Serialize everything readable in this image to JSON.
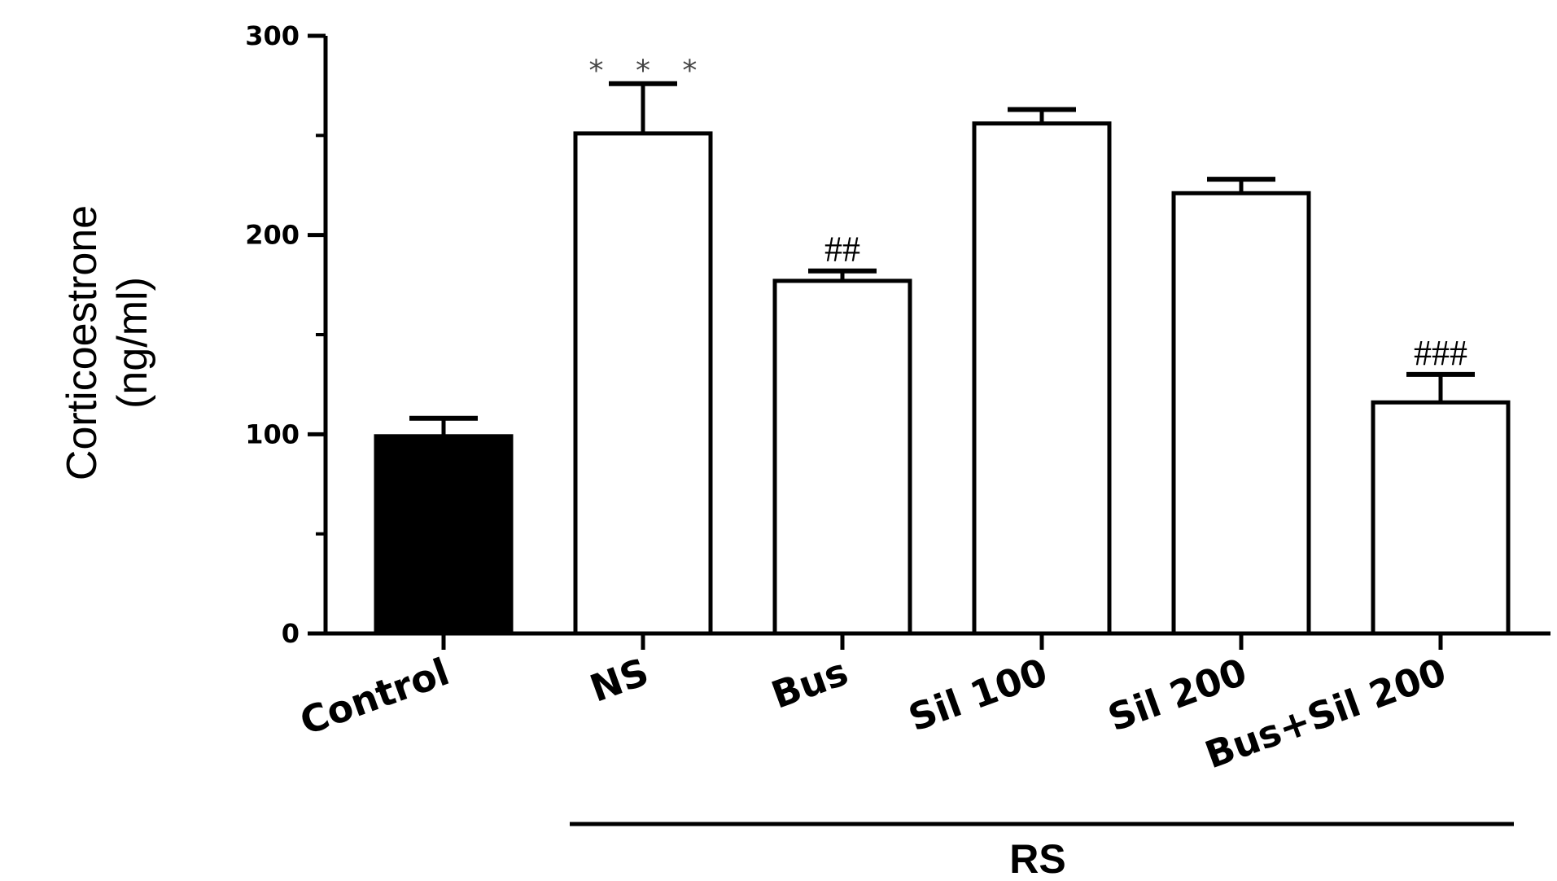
{
  "chart_data": {
    "type": "bar",
    "title": "",
    "xlabel": "",
    "ylabel": [
      "Corticoestrone",
      "(ng/ml)"
    ],
    "ylim": [
      0,
      300
    ],
    "yticks": [
      "0",
      "100",
      "200",
      "300"
    ],
    "categories": [
      "Control",
      "NS",
      "Bus",
      "Sil 100",
      "Sil 200",
      "Bus+Sil 200"
    ],
    "values": [
      99,
      251,
      177,
      256,
      221,
      116
    ],
    "errors": [
      9,
      25,
      5,
      7,
      7,
      14
    ],
    "bar_fills": [
      "#000000",
      "#ffffff",
      "#ffffff",
      "#ffffff",
      "#ffffff",
      "#ffffff"
    ],
    "annotations": [
      "",
      "* * *",
      "##",
      "",
      "",
      "###"
    ],
    "group_label": "RS",
    "grid": false,
    "legend": "none"
  }
}
